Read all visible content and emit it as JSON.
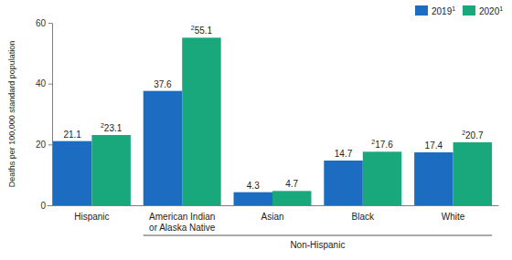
{
  "chart_data": {
    "type": "bar",
    "categories": [
      "Hispanic",
      "American Indian\nor Alaska Native",
      "Asian",
      "Black",
      "White"
    ],
    "groups": [
      null,
      "Non-Hispanic",
      "Non-Hispanic",
      "Non-Hispanic",
      "Non-Hispanic"
    ],
    "y_label": "Deaths per 100,000 standard population",
    "series": [
      {
        "name": "2019",
        "name_note": "1",
        "color": "#1c6dc1",
        "values": [
          21.1,
          37.6,
          4.3,
          14.7,
          17.4
        ]
      },
      {
        "name": "2020",
        "name_note": "1",
        "color": "#19a77c",
        "values": [
          23.1,
          55.1,
          4.7,
          17.6,
          20.7
        ],
        "value_notes": [
          "2",
          "2",
          null,
          "2",
          "2"
        ]
      }
    ],
    "ylim": [
      0,
      60
    ],
    "yticks": [
      0,
      20,
      40,
      60
    ],
    "grid": false,
    "legend": "top-right",
    "data_labels": true
  }
}
